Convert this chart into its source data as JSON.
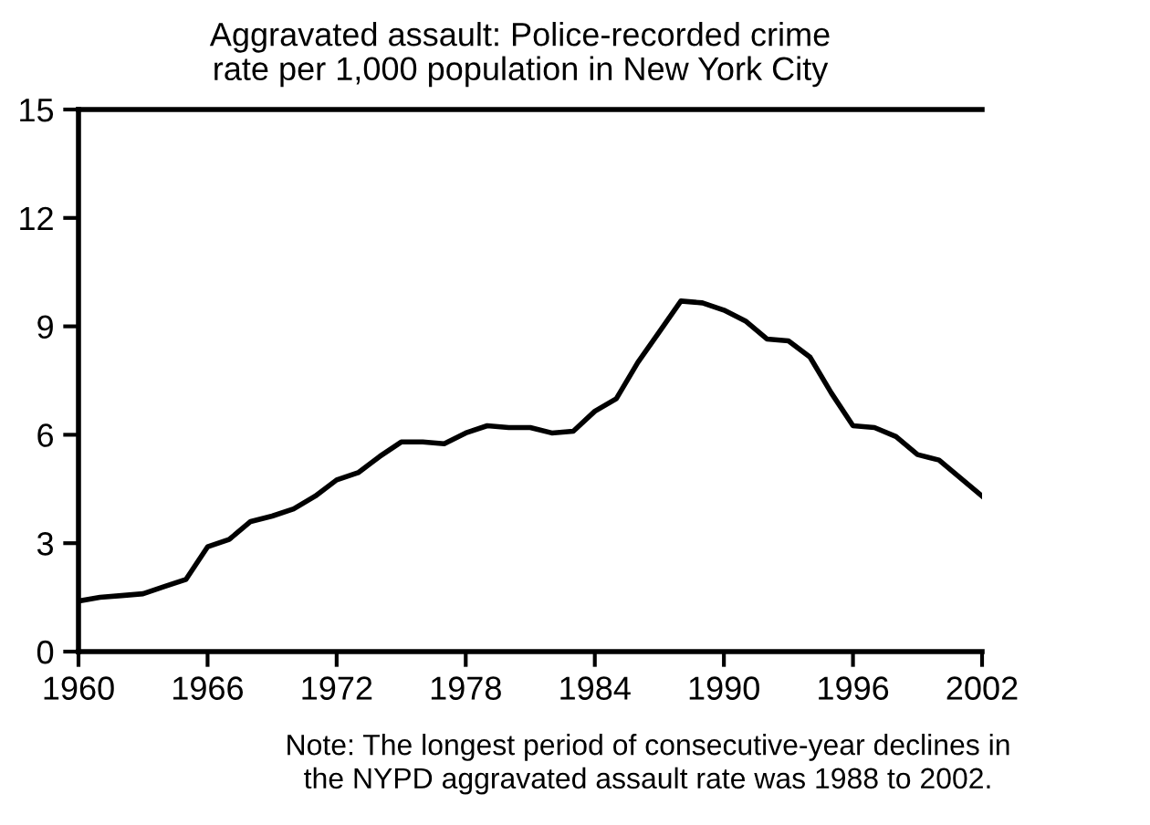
{
  "chart_data": {
    "type": "line",
    "title": "Aggravated assault: Police-recorded crime\nrate per 1,000 population in New York City",
    "x": [
      1960,
      1961,
      1962,
      1963,
      1964,
      1965,
      1966,
      1967,
      1968,
      1969,
      1970,
      1971,
      1972,
      1973,
      1974,
      1975,
      1976,
      1977,
      1978,
      1979,
      1980,
      1981,
      1982,
      1983,
      1984,
      1985,
      1986,
      1987,
      1988,
      1989,
      1990,
      1991,
      1992,
      1993,
      1994,
      1995,
      1996,
      1997,
      1998,
      1999,
      2000,
      2001,
      2002
    ],
    "series": [
      {
        "color": "#000000",
        "values": [
          1.4,
          1.5,
          1.55,
          1.6,
          1.8,
          2.0,
          2.9,
          3.1,
          3.6,
          3.75,
          3.95,
          4.3,
          4.75,
          4.95,
          5.4,
          5.8,
          5.8,
          5.75,
          6.05,
          6.25,
          6.2,
          6.2,
          6.05,
          6.1,
          6.65,
          7.0,
          8.0,
          8.85,
          9.7,
          9.65,
          9.45,
          9.15,
          8.65,
          8.6,
          8.15,
          7.15,
          6.25,
          6.2,
          5.95,
          5.45,
          5.3,
          4.8,
          4.3
        ]
      }
    ],
    "xlim": [
      1960,
      2002
    ],
    "xticks": [
      1960,
      1966,
      1972,
      1978,
      1984,
      1990,
      1996,
      2002
    ],
    "ylim": [
      0,
      15
    ],
    "yticks": [
      0,
      3,
      6,
      9,
      12,
      15
    ],
    "annotations": [
      "Note: The longest period of consecutive-year declines in\nthe NYPD aggravated assault rate was 1988 to 2002."
    ],
    "grid": false,
    "legend": false,
    "marker": "none",
    "line_style": "solid"
  }
}
